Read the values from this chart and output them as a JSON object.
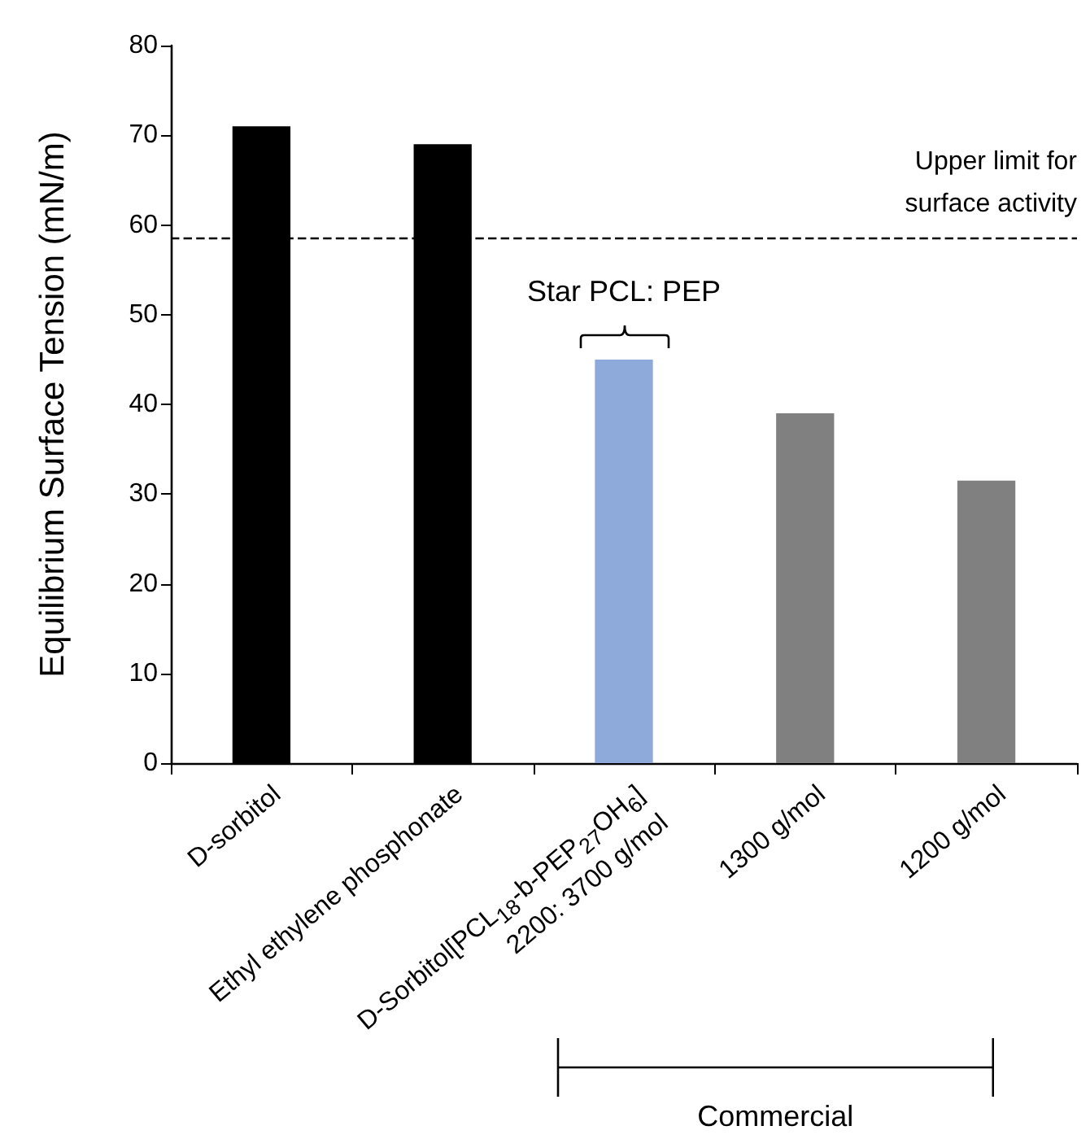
{
  "chart_data": {
    "type": "bar",
    "ylabel": "Equilibrium Surface Tension (mN/m)",
    "categories": [
      "D-sorbitol",
      "Ethyl ethylene phosphonate",
      "D-Sorbitol[PCL$_{18}$-b-PEP$_{27}$OH$_{6}$]\n2200: 3700 g/mol",
      "1300 g/mol",
      "1200 g/mol"
    ],
    "values": [
      71,
      69,
      45,
      39,
      31.5
    ],
    "colors": [
      "#000000",
      "#000000",
      "#8eaadb",
      "#808080",
      "#808080"
    ],
    "ylim": [
      0,
      80
    ],
    "yticks": [
      0,
      10,
      20,
      30,
      40,
      50,
      60,
      70,
      80
    ],
    "grid": false,
    "ref_lines": [
      {
        "axis": "y",
        "value": 58.5,
        "label": "Upper limit for\nsurface activity",
        "color": "#000000",
        "line_style": "dashed"
      }
    ],
    "annotations": [
      "Star PCL: PEP",
      "Commercial"
    ]
  }
}
